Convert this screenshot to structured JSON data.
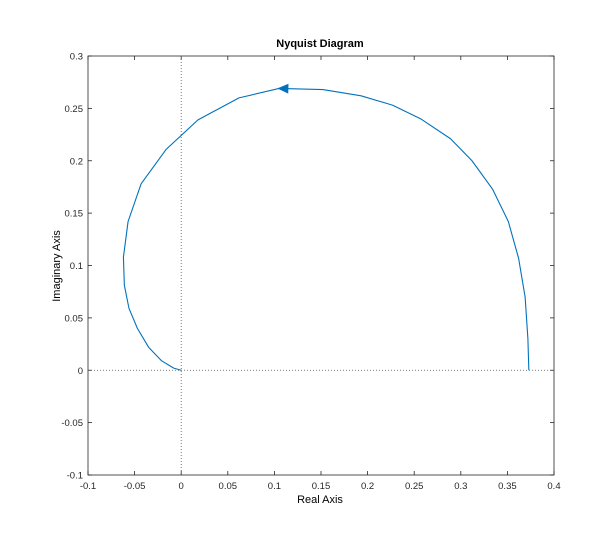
{
  "chart_data": {
    "type": "line",
    "title": "Nyquist Diagram",
    "xlabel": "Real Axis",
    "ylabel": "Imaginary Axis",
    "xlim": [
      -0.1,
      0.4
    ],
    "ylim": [
      -0.1,
      0.3
    ],
    "xticks": [
      -0.1,
      -0.05,
      0,
      0.05,
      0.1,
      0.15,
      0.2,
      0.25,
      0.3,
      0.35,
      0.4
    ],
    "xtick_labels": [
      "-0.1",
      "-0.05",
      "0",
      "0.05",
      "0.1",
      "0.15",
      "0.2",
      "0.25",
      "0.3",
      "0.35",
      "0.4"
    ],
    "yticks": [
      -0.1,
      -0.05,
      0,
      0.05,
      0.1,
      0.15,
      0.2,
      0.25,
      0.3
    ],
    "ytick_labels": [
      "-0.1",
      "-0.05",
      "0",
      "0.05",
      "0.1",
      "0.15",
      "0.2",
      "0.25",
      "0.3"
    ],
    "grid": false,
    "reference_lines": {
      "x": 0,
      "y": 0,
      "style": "dotted"
    },
    "series": [
      {
        "color": "#0072BD",
        "x": [
          0.373,
          0.372,
          0.369,
          0.362,
          0.351,
          0.334,
          0.312,
          0.289,
          0.257,
          0.227,
          0.193,
          0.152,
          0.105,
          0.062,
          0.018,
          -0.016,
          -0.043,
          -0.057,
          -0.062,
          -0.061,
          -0.056,
          -0.047,
          -0.035,
          -0.021,
          -0.008,
          0.0
        ],
        "y": [
          0.0,
          0.03,
          0.07,
          0.107,
          0.142,
          0.173,
          0.2,
          0.221,
          0.24,
          0.253,
          0.262,
          0.268,
          0.269,
          0.26,
          0.239,
          0.211,
          0.178,
          0.142,
          0.108,
          0.081,
          0.059,
          0.04,
          0.022,
          0.009,
          0.002,
          0.0
        ]
      }
    ],
    "direction_arrow_at_index": 12,
    "direction_arrow_color": "#0072BD"
  }
}
